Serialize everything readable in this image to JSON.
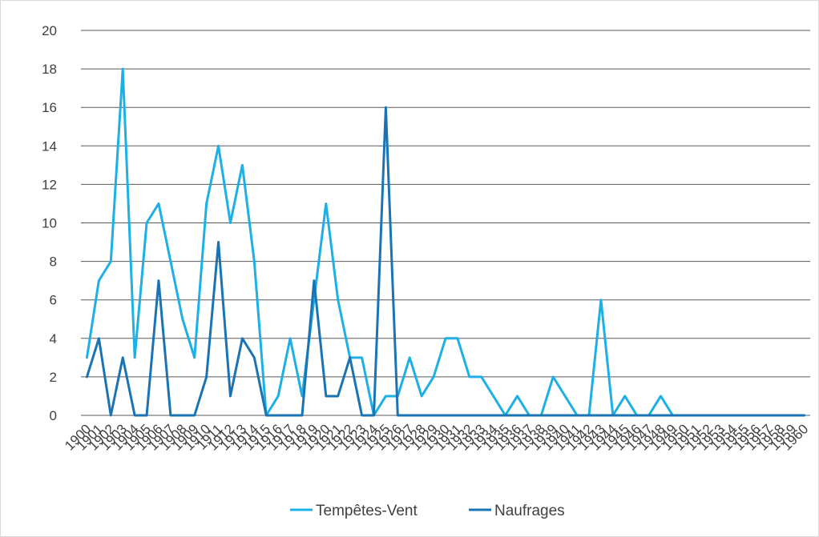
{
  "chart_data": {
    "type": "line",
    "title": "",
    "xlabel": "",
    "ylabel": "",
    "ylim": [
      0,
      20
    ],
    "yticks": [
      0,
      2,
      4,
      6,
      8,
      10,
      12,
      14,
      16,
      18,
      20
    ],
    "grid": "horizontal",
    "legend_position": "bottom",
    "x": [
      "1900",
      "1901",
      "1902",
      "1903",
      "1904",
      "1905",
      "1906",
      "1907",
      "1908",
      "1909",
      "1910",
      "1911",
      "1912",
      "1913",
      "1914",
      "1915",
      "1916",
      "1917",
      "1918",
      "1919",
      "1920",
      "1921",
      "1922",
      "1923",
      "1924",
      "1925",
      "1926",
      "1927",
      "1928",
      "1929",
      "1930",
      "1931",
      "1932",
      "1933",
      "1934",
      "1935",
      "1936",
      "1937",
      "1938",
      "1939",
      "1940",
      "1941",
      "1942",
      "1943",
      "1944",
      "1945",
      "1946",
      "1947",
      "1948",
      "1949",
      "1950",
      "1951",
      "1952",
      "1953",
      "1954",
      "1955",
      "1956",
      "1957",
      "1958",
      "1959",
      "1960"
    ],
    "series": [
      {
        "name": "Tempêtes-Vent",
        "color": "#1cb0e6",
        "values": [
          3,
          7,
          8,
          18,
          3,
          10,
          11,
          8,
          5,
          3,
          11,
          14,
          10,
          13,
          8,
          0,
          1,
          4,
          1,
          6,
          11,
          6,
          3,
          3,
          0,
          1,
          1,
          3,
          1,
          2,
          4,
          4,
          2,
          2,
          1,
          0,
          1,
          0,
          0,
          2,
          1,
          0,
          0,
          6,
          0,
          1,
          0,
          0,
          1,
          0,
          0,
          0,
          0,
          0,
          0,
          0,
          0,
          0,
          0,
          0,
          0
        ]
      },
      {
        "name": "Naufrages",
        "color": "#1a74b4",
        "values": [
          2,
          4,
          0,
          3,
          0,
          0,
          7,
          0,
          0,
          0,
          2,
          9,
          1,
          4,
          3,
          0,
          0,
          0,
          0,
          7,
          1,
          1,
          3,
          0,
          0,
          16,
          0,
          0,
          0,
          0,
          0,
          0,
          0,
          0,
          0,
          0,
          0,
          0,
          0,
          0,
          0,
          0,
          0,
          0,
          0,
          0,
          0,
          0,
          0,
          0,
          0,
          0,
          0,
          0,
          0,
          0,
          0,
          0,
          0,
          0,
          0
        ]
      }
    ]
  }
}
